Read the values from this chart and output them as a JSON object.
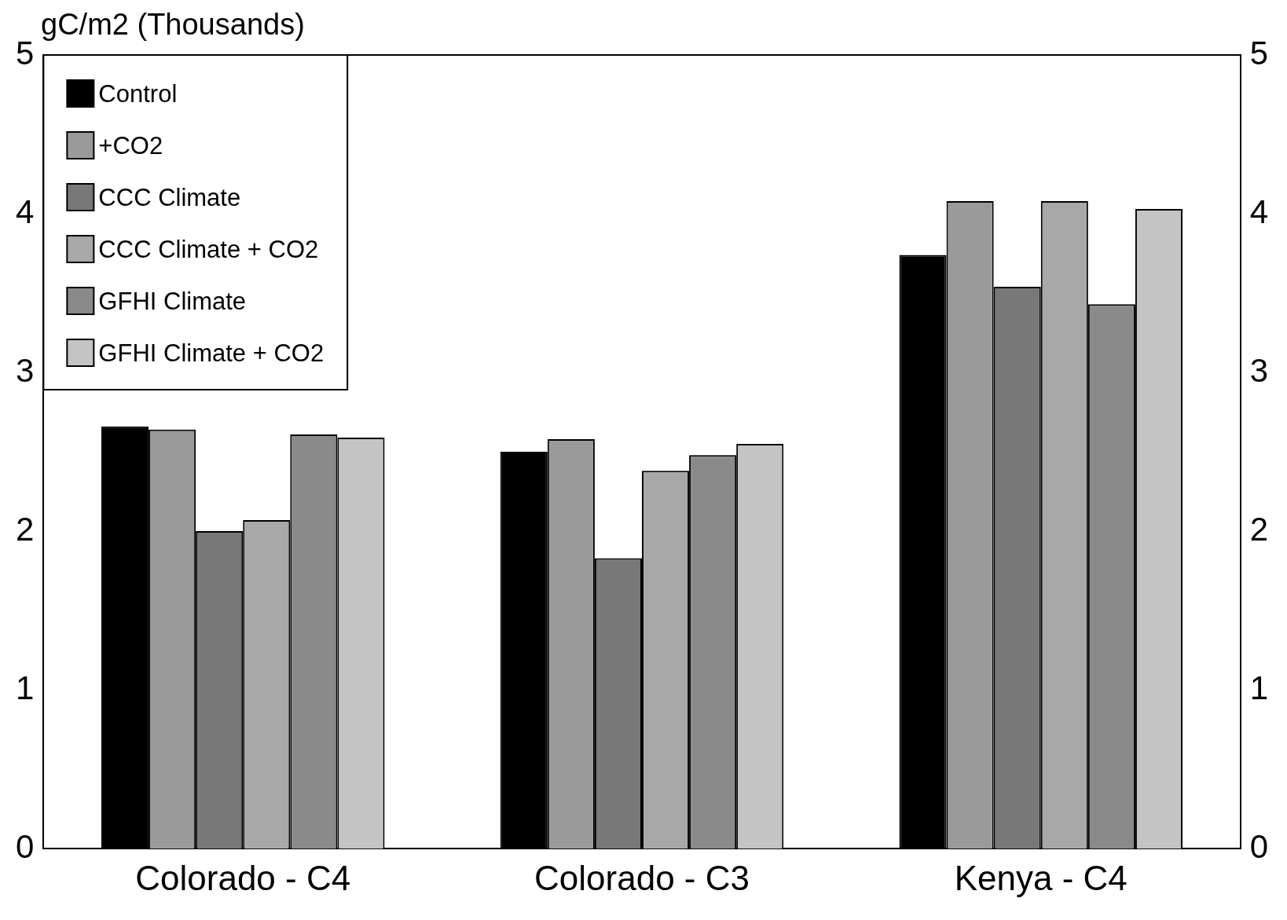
{
  "chart_data": {
    "type": "bar",
    "ylabel": "gC/m2 (Thousands)",
    "categories": [
      "Colorado - C4",
      "Colorado - C3",
      "Kenya - C4"
    ],
    "series": [
      {
        "name": "Control",
        "color": "#000000",
        "values": [
          2.66,
          2.5,
          3.74
        ]
      },
      {
        "name": "+CO2",
        "color": "#9a9a9a",
        "values": [
          2.64,
          2.58,
          4.08
        ]
      },
      {
        "name": "CCC Climate",
        "color": "#787878",
        "values": [
          2.0,
          1.83,
          3.54
        ]
      },
      {
        "name": "CCC Climate + CO2",
        "color": "#a8a8a8",
        "values": [
          2.07,
          2.38,
          4.08
        ]
      },
      {
        "name": "GFHI Climate",
        "color": "#8a8a8a",
        "values": [
          2.61,
          2.48,
          3.43
        ]
      },
      {
        "name": "GFHI Climate + CO2",
        "color": "#c4c4c4",
        "values": [
          2.59,
          2.55,
          4.03
        ]
      }
    ],
    "ylim": [
      0,
      5
    ],
    "yticks": [
      0,
      1,
      2,
      3,
      4,
      5
    ],
    "y2lim": [
      0,
      5
    ],
    "y2ticks": [
      0,
      1,
      2,
      3,
      4,
      5
    ],
    "grid": false,
    "legend": "top left"
  }
}
